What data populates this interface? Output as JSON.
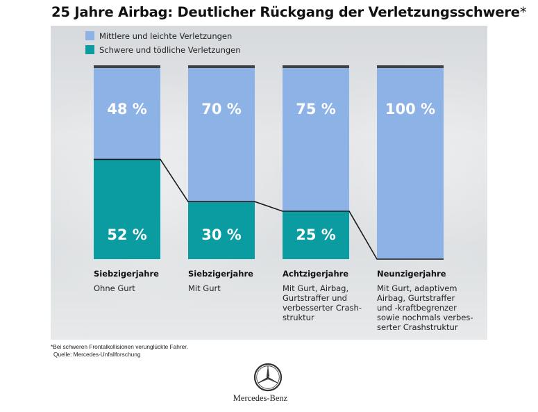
{
  "title": "25 Jahre Airbag: Deutlicher Rückgang der Verletzungsschwere",
  "title_marker": "*",
  "colors": {
    "light": "#8cb2e6",
    "severe": "#0b9ca2",
    "bar_top": "#3f4144",
    "connector": "#1a1a1a"
  },
  "chart_data": {
    "type": "bar",
    "stacked": true,
    "ylim": [
      0,
      100
    ],
    "categories": [
      "Siebzigerjahre",
      "Siebzigerjahre",
      "Achtzigerjahre",
      "Neunzigerjahre"
    ],
    "descriptions": [
      [
        "Ohne Gurt"
      ],
      [
        "Mit Gurt"
      ],
      [
        "Mit Gurt, Airbag,",
        "Gurtstraffer und",
        "verbesserter Crash-",
        "struktur"
      ],
      [
        "Mit Gurt, adaptivem",
        "Airbag, Gurtstraffer",
        "und -kraftbegrenzer",
        "sowie nochmals verbes-",
        "serter Crashstruktur"
      ]
    ],
    "series": [
      {
        "name": "Schwere und tödliche Verletzungen",
        "values": [
          52,
          30,
          25,
          0
        ],
        "labels": [
          "52 %",
          "30 %",
          "25 %",
          ""
        ]
      },
      {
        "name": "Mittlere und leichte Verletzungen",
        "values": [
          48,
          70,
          75,
          100
        ],
        "labels": [
          "48 %",
          "70 %",
          "75 %",
          "100 %"
        ]
      }
    ],
    "legend_position": "top-left",
    "grid": false
  },
  "footnote": {
    "line1": "*Bei schweren Frontalkollisionen verunglückte Fahrer.",
    "line2": "Quelle: Mercedes-Unfallforschung"
  },
  "brand": {
    "name": "Mercedes-Benz",
    "logo_icon": "three-pointed-star-icon"
  }
}
